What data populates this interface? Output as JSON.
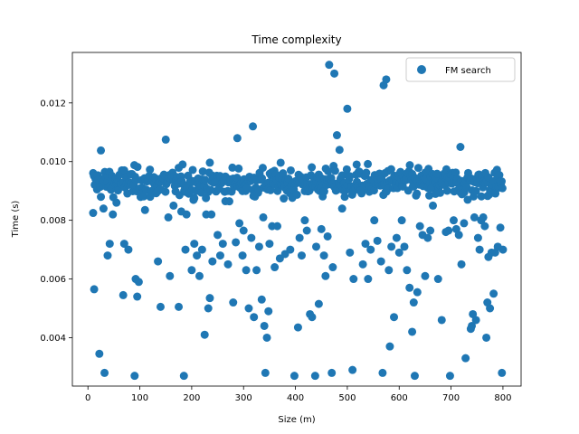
{
  "chart_data": {
    "type": "scatter",
    "title": "Time complexity",
    "xlabel": "Size (m)",
    "ylabel": "Time (s)",
    "xlim": [
      -30,
      835
    ],
    "ylim": [
      0.00235,
      0.01372
    ],
    "xticks": [
      0,
      100,
      200,
      300,
      400,
      500,
      600,
      700,
      800
    ],
    "yticks": [
      0.004,
      0.006,
      0.008,
      0.01,
      0.012
    ],
    "ytick_labels": [
      "0.004",
      "0.006",
      "0.008",
      "0.010",
      "0.012"
    ],
    "legend_position": "top-right",
    "grid": false,
    "series": [
      {
        "name": "FM search",
        "color": "#1f77b4",
        "points": [
          [
            10,
            0.00825
          ],
          [
            12,
            0.00565
          ],
          [
            22,
            0.00345
          ],
          [
            25,
            0.01038
          ],
          [
            30,
            0.0084
          ],
          [
            32,
            0.0028
          ],
          [
            38,
            0.0068
          ],
          [
            42,
            0.0072
          ],
          [
            48,
            0.0082
          ],
          [
            55,
            0.0086
          ],
          [
            68,
            0.00545
          ],
          [
            70,
            0.0072
          ],
          [
            78,
            0.007
          ],
          [
            90,
            0.0027
          ],
          [
            92,
            0.006
          ],
          [
            95,
            0.0054
          ],
          [
            98,
            0.0059
          ],
          [
            110,
            0.00835
          ],
          [
            120,
            0.0088
          ],
          [
            135,
            0.0066
          ],
          [
            140,
            0.00505
          ],
          [
            150,
            0.01075
          ],
          [
            155,
            0.0081
          ],
          [
            158,
            0.0061
          ],
          [
            165,
            0.0085
          ],
          [
            175,
            0.00505
          ],
          [
            180,
            0.0083
          ],
          [
            185,
            0.0027
          ],
          [
            188,
            0.007
          ],
          [
            190,
            0.0082
          ],
          [
            200,
            0.0063
          ],
          [
            205,
            0.0072
          ],
          [
            210,
            0.0068
          ],
          [
            215,
            0.0061
          ],
          [
            220,
            0.007
          ],
          [
            225,
            0.0041
          ],
          [
            228,
            0.0082
          ],
          [
            232,
            0.005
          ],
          [
            235,
            0.00535
          ],
          [
            238,
            0.0082
          ],
          [
            240,
            0.0066
          ],
          [
            250,
            0.0075
          ],
          [
            255,
            0.0068
          ],
          [
            260,
            0.0072
          ],
          [
            265,
            0.00865
          ],
          [
            270,
            0.0065
          ],
          [
            280,
            0.0052
          ],
          [
            285,
            0.00725
          ],
          [
            288,
            0.0108
          ],
          [
            292,
            0.0079
          ],
          [
            298,
            0.0068
          ],
          [
            300,
            0.00765
          ],
          [
            305,
            0.0063
          ],
          [
            310,
            0.005
          ],
          [
            315,
            0.0074
          ],
          [
            318,
            0.0112
          ],
          [
            320,
            0.0047
          ],
          [
            325,
            0.0063
          ],
          [
            330,
            0.0071
          ],
          [
            335,
            0.0053
          ],
          [
            338,
            0.0081
          ],
          [
            340,
            0.0044
          ],
          [
            342,
            0.0028
          ],
          [
            345,
            0.004
          ],
          [
            348,
            0.0049
          ],
          [
            350,
            0.0072
          ],
          [
            355,
            0.0078
          ],
          [
            360,
            0.0064
          ],
          [
            365,
            0.0078
          ],
          [
            370,
            0.0067
          ],
          [
            380,
            0.00685
          ],
          [
            390,
            0.007
          ],
          [
            398,
            0.0027
          ],
          [
            405,
            0.00435
          ],
          [
            408,
            0.0074
          ],
          [
            412,
            0.0068
          ],
          [
            418,
            0.008
          ],
          [
            422,
            0.00765
          ],
          [
            428,
            0.0048
          ],
          [
            432,
            0.0047
          ],
          [
            438,
            0.0027
          ],
          [
            440,
            0.0071
          ],
          [
            445,
            0.00515
          ],
          [
            450,
            0.0077
          ],
          [
            455,
            0.0068
          ],
          [
            458,
            0.0061
          ],
          [
            462,
            0.00745
          ],
          [
            465,
            0.0133
          ],
          [
            470,
            0.0028
          ],
          [
            472,
            0.0064
          ],
          [
            475,
            0.013
          ],
          [
            480,
            0.0109
          ],
          [
            485,
            0.0104
          ],
          [
            490,
            0.0084
          ],
          [
            495,
            0.0088
          ],
          [
            500,
            0.0118
          ],
          [
            505,
            0.0069
          ],
          [
            510,
            0.0029
          ],
          [
            512,
            0.006
          ],
          [
            518,
            0.0099
          ],
          [
            525,
            0.009
          ],
          [
            530,
            0.0065
          ],
          [
            535,
            0.0072
          ],
          [
            540,
            0.006
          ],
          [
            545,
            0.007
          ],
          [
            552,
            0.008
          ],
          [
            558,
            0.0073
          ],
          [
            565,
            0.0066
          ],
          [
            568,
            0.0028
          ],
          [
            570,
            0.0126
          ],
          [
            575,
            0.0128
          ],
          [
            580,
            0.0063
          ],
          [
            582,
            0.0037
          ],
          [
            585,
            0.0071
          ],
          [
            590,
            0.0047
          ],
          [
            595,
            0.0074
          ],
          [
            600,
            0.0069
          ],
          [
            605,
            0.008
          ],
          [
            610,
            0.0071
          ],
          [
            615,
            0.0063
          ],
          [
            620,
            0.0057
          ],
          [
            625,
            0.0042
          ],
          [
            628,
            0.0052
          ],
          [
            630,
            0.0027
          ],
          [
            635,
            0.00555
          ],
          [
            640,
            0.0078
          ],
          [
            645,
            0.0075
          ],
          [
            650,
            0.0061
          ],
          [
            655,
            0.0074
          ],
          [
            660,
            0.00765
          ],
          [
            665,
            0.0085
          ],
          [
            670,
            0.0089
          ],
          [
            675,
            0.006
          ],
          [
            682,
            0.0046
          ],
          [
            690,
            0.0076
          ],
          [
            695,
            0.00765
          ],
          [
            698,
            0.0027
          ],
          [
            705,
            0.008
          ],
          [
            710,
            0.0077
          ],
          [
            715,
            0.0075
          ],
          [
            718,
            0.0105
          ],
          [
            720,
            0.0065
          ],
          [
            725,
            0.0079
          ],
          [
            728,
            0.0033
          ],
          [
            732,
            0.0087
          ],
          [
            738,
            0.0043
          ],
          [
            740,
            0.0044
          ],
          [
            742,
            0.0048
          ],
          [
            745,
            0.0081
          ],
          [
            748,
            0.0046
          ],
          [
            752,
            0.0074
          ],
          [
            755,
            0.007
          ],
          [
            758,
            0.008
          ],
          [
            762,
            0.0081
          ],
          [
            765,
            0.0078
          ],
          [
            768,
            0.004
          ],
          [
            770,
            0.0052
          ],
          [
            772,
            0.00675
          ],
          [
            775,
            0.005
          ],
          [
            778,
            0.0069
          ],
          [
            782,
            0.0055
          ],
          [
            785,
            0.0069
          ],
          [
            790,
            0.0071
          ],
          [
            795,
            0.00775
          ],
          [
            798,
            0.0028
          ],
          [
            800,
            0.007
          ]
        ],
        "band": {
          "x_from": 10,
          "x_to": 800,
          "x_step": 1.5,
          "y_center": 0.00928,
          "y_spread": 0.00035,
          "upper_outliers_max": 0.0101,
          "lower_outliers_min": 0.0085
        }
      }
    ]
  }
}
